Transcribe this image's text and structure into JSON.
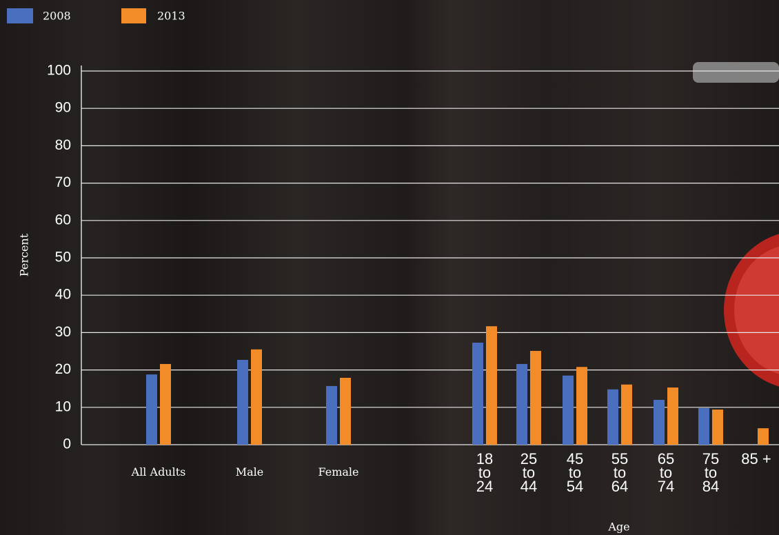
{
  "chart_data": {
    "type": "bar",
    "x_label": "Age",
    "y_label": "Percent",
    "categories": [
      "All Adults",
      "Male",
      "Female",
      "18 to 24",
      "25 to 44",
      "45 to 54",
      "55 to 64",
      "65 to 74",
      "75 to 84",
      "85 +"
    ],
    "series": [
      {
        "name": "2008",
        "color": "#4a6fbe",
        "values": [
          18.8,
          22.7,
          15.7,
          27.3,
          21.6,
          18.5,
          14.8,
          12.0,
          9.8,
          null
        ]
      },
      {
        "name": "2013",
        "color": "#f28c28",
        "values": [
          21.6,
          25.5,
          17.9,
          31.7,
          25.1,
          20.8,
          16.1,
          15.3,
          9.4,
          4.4
        ]
      }
    ],
    "ylim": [
      0,
      100
    ],
    "yticks": [
      0,
      10,
      20,
      30,
      40,
      50,
      60,
      70,
      80,
      90,
      100
    ],
    "grid": true
  }
}
